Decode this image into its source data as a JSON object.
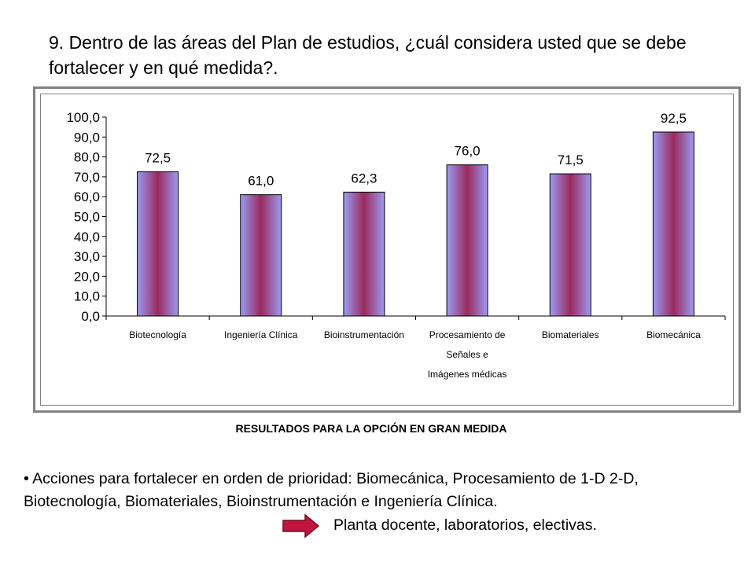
{
  "question": "9.  Dentro de las áreas del Plan de estudios, ¿cuál considera usted que se debe fortalecer y en qué medida?.",
  "caption": "RESULTADOS PARA LA OPCIÓN EN GRAN MEDIDA",
  "bullet": "• Acciones para fortalecer en orden de prioridad:  Biomecánica, Procesamiento de 1-D 2-D, Biotecnología, Biomateriales, Bioinstrumentación e Ingeniería Clínica.",
  "followup": "Planta docente, laboratorios, electivas.",
  "colors": {
    "bar_center": "#9b2a5c",
    "bar_edge": "#9b9bf4",
    "arrow": "#c0143c"
  },
  "icons": {
    "arrow": "right-arrow-icon"
  },
  "chart_data": {
    "type": "bar",
    "categories": [
      [
        "Biotecnología"
      ],
      [
        "Ingeniería Clínica"
      ],
      [
        "Bioinstrumentación"
      ],
      [
        "Procesamiento de",
        "Señales e",
        "Imágenes médicas"
      ],
      [
        "Biomateriales"
      ],
      [
        "Biomecánica"
      ]
    ],
    "values": [
      72.5,
      61.0,
      62.3,
      76.0,
      71.5,
      92.5
    ],
    "data_labels": [
      "72,5",
      "61,0",
      "62,3",
      "76,0",
      "71,5",
      "92,5"
    ],
    "y_ticks": [
      "0,0",
      "10,0",
      "20,0",
      "30,0",
      "40,0",
      "50,0",
      "60,0",
      "70,0",
      "80,0",
      "90,0",
      "100,0"
    ],
    "ylim": [
      0,
      100
    ],
    "grid": false,
    "legend": "none"
  }
}
